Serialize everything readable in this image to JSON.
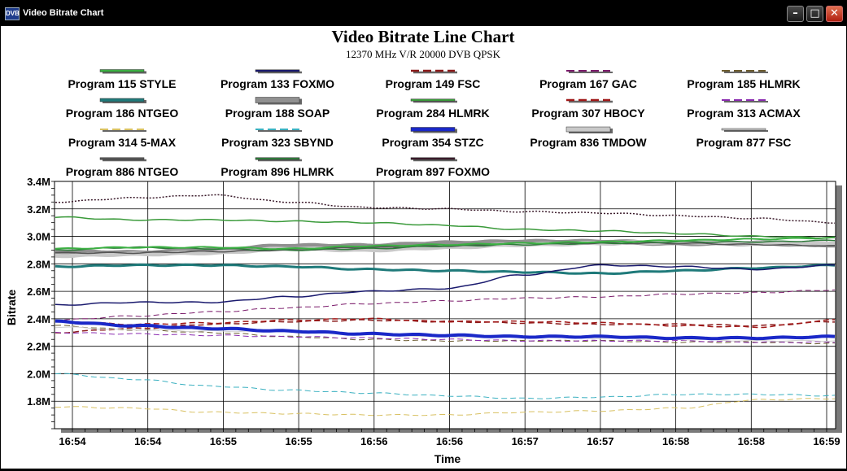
{
  "window": {
    "title": "Video Bitrate Chart",
    "icon_label": "DVB",
    "icons": [
      "app-icon",
      "minimize-icon",
      "maximize-icon",
      "close-icon"
    ]
  },
  "chart_data": {
    "type": "line",
    "title": "Video Bitrate Line Chart",
    "subtitle": "12370 MHz V/R 20000 DVB QPSK",
    "xlabel": "Time",
    "ylabel": "Bitrate",
    "x": [
      "16:54",
      "16:54",
      "16:55",
      "16:55",
      "16:56",
      "16:56",
      "16:57",
      "16:57",
      "16:58",
      "16:58",
      "16:59"
    ],
    "y_ticks": [
      "3.4M",
      "3.2M",
      "3.0M",
      "2.8M",
      "2.6M",
      "2.4M",
      "2.2M",
      "2.0M",
      "1.8M"
    ],
    "ylim": [
      1.6,
      3.4
    ],
    "grid": true,
    "legend_position": "top",
    "series": [
      {
        "name": "Program 115 STYLE",
        "color": "#3cb043",
        "style": "solid",
        "width": 2,
        "values": [
          2.91,
          2.92,
          2.92,
          2.91,
          2.93,
          2.94,
          2.95,
          2.96,
          2.97,
          2.98,
          2.99
        ]
      },
      {
        "name": "Program 133 FOXMO",
        "color": "#1a1a6e",
        "style": "solid",
        "width": 1.5,
        "values": [
          2.5,
          2.52,
          2.52,
          2.56,
          2.6,
          2.62,
          2.72,
          2.79,
          2.78,
          2.76,
          2.79
        ]
      },
      {
        "name": "Program 149 FSC",
        "color": "#8b1a1a",
        "style": "dash",
        "width": 1.5,
        "values": [
          2.3,
          2.33,
          2.36,
          2.38,
          2.39,
          2.38,
          2.37,
          2.36,
          2.36,
          2.35,
          2.38
        ]
      },
      {
        "name": "Program 167 GAC",
        "color": "#7a1a6a",
        "style": "dash",
        "width": 1,
        "values": [
          2.39,
          2.42,
          2.45,
          2.48,
          2.51,
          2.53,
          2.55,
          2.56,
          2.58,
          2.59,
          2.61
        ]
      },
      {
        "name": "Program 185 HLMRK",
        "color": "#6b5b2e",
        "style": "dash",
        "width": 1,
        "values": [
          2.35,
          2.32,
          2.3,
          2.27,
          2.25,
          2.24,
          2.24,
          2.24,
          2.23,
          2.23,
          2.22
        ]
      },
      {
        "name": "Program 186 NTGEO",
        "color": "#1f7a7a",
        "style": "solid",
        "width": 3,
        "values": [
          2.78,
          2.79,
          2.79,
          2.78,
          2.76,
          2.75,
          2.74,
          2.73,
          2.75,
          2.77,
          2.79
        ]
      },
      {
        "name": "Program 188 SOAP",
        "color": "#909090",
        "style": "solid",
        "width": 6,
        "values": [
          2.89,
          2.88,
          2.9,
          2.93,
          2.93,
          2.95,
          2.96,
          2.96,
          2.95,
          2.95,
          2.94
        ]
      },
      {
        "name": "Program 284 HLMRK",
        "color": "#3a9a3a",
        "style": "solid",
        "width": 1.5,
        "values": [
          3.14,
          3.12,
          3.12,
          3.11,
          3.1,
          3.08,
          3.05,
          3.04,
          3.02,
          3.0,
          2.99
        ]
      },
      {
        "name": "Program 307 HBOCY",
        "color": "#a01818",
        "style": "dash",
        "width": 1.5,
        "values": [
          2.38,
          2.36,
          2.37,
          2.39,
          2.4,
          2.38,
          2.38,
          2.37,
          2.35,
          2.34,
          2.39
        ]
      },
      {
        "name": "Program 313 ACMAX",
        "color": "#8a2ab0",
        "style": "dash",
        "width": 1,
        "values": [
          2.3,
          2.29,
          2.28,
          2.27,
          2.26,
          2.25,
          2.24,
          2.24,
          2.24,
          2.23,
          2.23
        ]
      },
      {
        "name": "Program 314 5-MAX",
        "color": "#d8c060",
        "style": "dash",
        "width": 1,
        "values": [
          1.76,
          1.75,
          1.72,
          1.71,
          1.7,
          1.7,
          1.72,
          1.73,
          1.75,
          1.81,
          1.82
        ]
      },
      {
        "name": "Program 323 SBYND",
        "color": "#3ab0c0",
        "style": "dash",
        "width": 1,
        "values": [
          2.0,
          1.96,
          1.91,
          1.88,
          1.86,
          1.84,
          1.82,
          1.83,
          1.85,
          1.85,
          1.84
        ]
      },
      {
        "name": "Program 354 STZC",
        "color": "#1a28c8",
        "style": "solid",
        "width": 4,
        "values": [
          2.38,
          2.35,
          2.33,
          2.31,
          2.29,
          2.28,
          2.27,
          2.27,
          2.26,
          2.26,
          2.27
        ]
      },
      {
        "name": "Program 836 TMDOW",
        "color": "#c8c8c8",
        "style": "solid",
        "width": 5,
        "values": [
          2.86,
          2.87,
          2.88,
          2.91,
          2.9,
          2.92,
          2.94,
          2.95,
          2.96,
          2.95,
          2.95
        ]
      },
      {
        "name": "Program 877 FSC",
        "color": "#d0d0d0",
        "style": "solid",
        "width": 1,
        "values": [
          2.34,
          2.32,
          2.31,
          2.31,
          2.29,
          2.27,
          2.27,
          2.26,
          2.25,
          2.24,
          2.24
        ]
      },
      {
        "name": "Program 886 NTGEO",
        "color": "#555555",
        "style": "solid",
        "width": 1.5,
        "values": [
          2.88,
          2.88,
          2.89,
          2.9,
          2.92,
          2.93,
          2.95,
          2.95,
          2.95,
          2.94,
          2.93
        ]
      },
      {
        "name": "Program 896 HLMRK",
        "color": "#2e7a3a",
        "style": "solid",
        "width": 1.5,
        "values": [
          2.9,
          2.92,
          2.91,
          2.9,
          2.91,
          2.93,
          2.94,
          2.95,
          2.96,
          2.96,
          2.97
        ]
      },
      {
        "name": "Program 897 FOXMO",
        "color": "#3a1a2a",
        "style": "dot",
        "width": 1.5,
        "values": [
          3.25,
          3.28,
          3.3,
          3.25,
          3.21,
          3.2,
          3.18,
          3.17,
          3.15,
          3.13,
          3.1
        ]
      }
    ]
  }
}
